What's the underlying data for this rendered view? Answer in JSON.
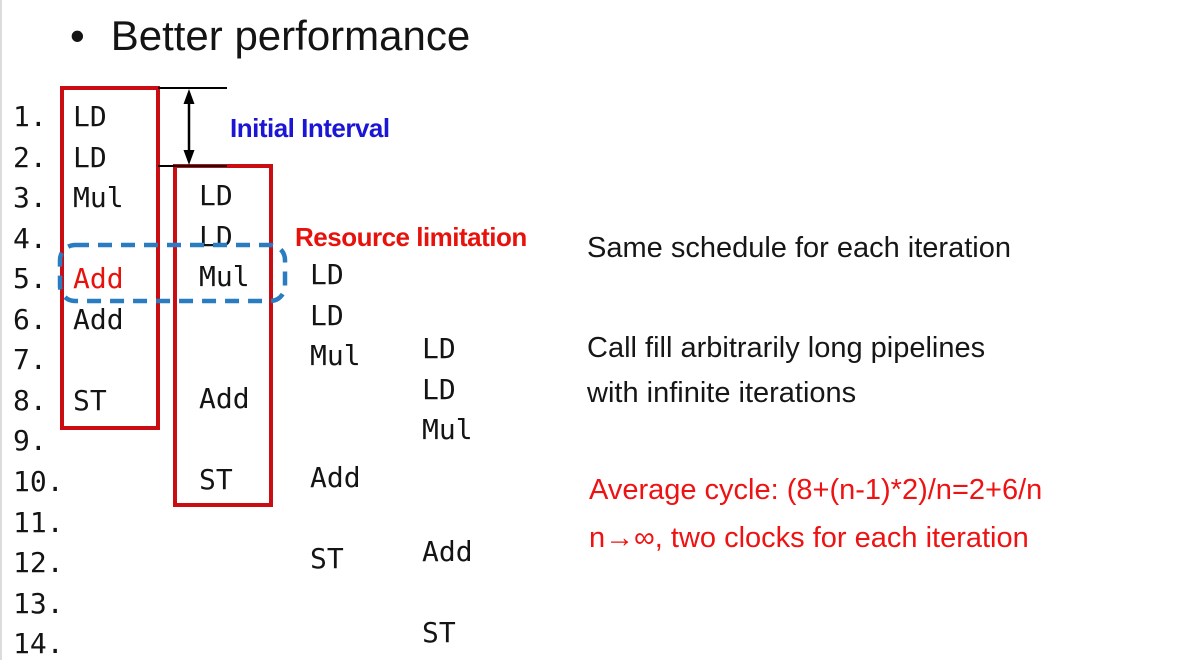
{
  "slide": {
    "bullet": "•",
    "title": "Better performance"
  },
  "labels": {
    "initial_interval": "Initial Interval",
    "resource_limitation": "Resource limitation"
  },
  "line_numbers": [
    "1.",
    "2.",
    "3.",
    "4.",
    "5.",
    "6.",
    "7.",
    "8.",
    "9.",
    "10.",
    "11.",
    "12.",
    "13.",
    "14."
  ],
  "schedule": {
    "iterations": [
      {
        "name": "iteration-1",
        "boxed": true,
        "items": [
          {
            "label": "LD",
            "row": 1
          },
          {
            "label": "LD",
            "row": 2
          },
          {
            "label": "Mul",
            "row": 3
          },
          {
            "label": "Add",
            "row": 5,
            "highlight": true
          },
          {
            "label": "Add",
            "row": 6
          },
          {
            "label": "ST",
            "row": 8
          }
        ]
      },
      {
        "name": "iteration-2",
        "boxed": true,
        "items": [
          {
            "label": "LD",
            "row": 3
          },
          {
            "label": "LD",
            "row": 4
          },
          {
            "label": "Mul",
            "row": 5
          },
          {
            "label": "Add",
            "row": 8
          },
          {
            "label": "ST",
            "row": 10
          }
        ]
      },
      {
        "name": "iteration-3",
        "boxed": false,
        "items": [
          {
            "label": "LD",
            "row": 5
          },
          {
            "label": "LD",
            "row": 6
          },
          {
            "label": "Mul",
            "row": 7
          },
          {
            "label": "Add",
            "row": 10
          },
          {
            "label": "ST",
            "row": 12
          }
        ]
      },
      {
        "name": "iteration-4",
        "boxed": false,
        "items": [
          {
            "label": "LD",
            "row": 7
          },
          {
            "label": "LD",
            "row": 8
          },
          {
            "label": "Mul",
            "row": 9
          },
          {
            "label": "Add",
            "row": 12
          },
          {
            "label": "ST",
            "row": 14
          }
        ]
      }
    ]
  },
  "notes": {
    "same_schedule": "Same schedule for each iteration",
    "pipelines_line1": "Call fill arbitrarily long pipelines",
    "pipelines_line2": "with infinite iterations",
    "average_cycle_line1": "Average cycle: (8+(n-1)*2)/n=2+6/n",
    "average_cycle_line2": "n→∞, two clocks for each iteration"
  },
  "colors": {
    "box_red": "#c90d12",
    "highlight_red": "#e8120c",
    "note_red": "#ee1212",
    "label_blue": "#1b15d6",
    "dash_blue": "#2a7cc0",
    "text_black": "#141414"
  }
}
